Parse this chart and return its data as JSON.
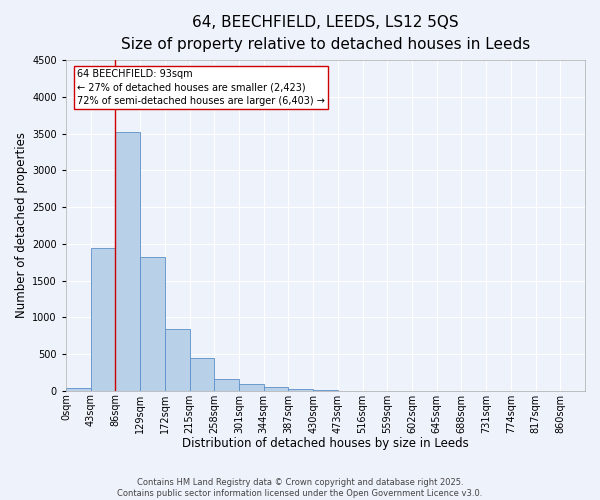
{
  "title": "64, BEECHFIELD, LEEDS, LS12 5QS",
  "subtitle": "Size of property relative to detached houses in Leeds",
  "xlabel": "Distribution of detached houses by size in Leeds",
  "ylabel": "Number of detached properties",
  "bin_labels": [
    "0sqm",
    "43sqm",
    "86sqm",
    "129sqm",
    "172sqm",
    "215sqm",
    "258sqm",
    "301sqm",
    "344sqm",
    "387sqm",
    "430sqm",
    "473sqm",
    "516sqm",
    "559sqm",
    "602sqm",
    "645sqm",
    "688sqm",
    "731sqm",
    "774sqm",
    "817sqm",
    "860sqm"
  ],
  "bar_heights": [
    30,
    1950,
    3520,
    1820,
    840,
    450,
    155,
    95,
    50,
    28,
    15,
    0,
    0,
    0,
    0,
    0,
    0,
    0,
    0,
    0,
    0
  ],
  "bar_color": "#b8d0e8",
  "bar_edge_color": "#5b8fc9",
  "vline_x": 2.0,
  "vline_color": "#cc0000",
  "annotation_line1": "64 BEECHFIELD: 93sqm",
  "annotation_line2": "← 27% of detached houses are smaller (2,423)",
  "annotation_line3": "72% of semi-detached houses are larger (6,403) →",
  "annotation_box_color": "#ffffff",
  "annotation_box_edge_color": "#cc0000",
  "ylim": [
    0,
    4500
  ],
  "background_color": "#eef2fb",
  "grid_color": "#ffffff",
  "footer_text": "Contains HM Land Registry data © Crown copyright and database right 2025.\nContains public sector information licensed under the Open Government Licence v3.0.",
  "title_fontsize": 11,
  "subtitle_fontsize": 9,
  "axis_label_fontsize": 8.5,
  "tick_fontsize": 7,
  "annotation_fontsize": 7,
  "footer_fontsize": 6
}
